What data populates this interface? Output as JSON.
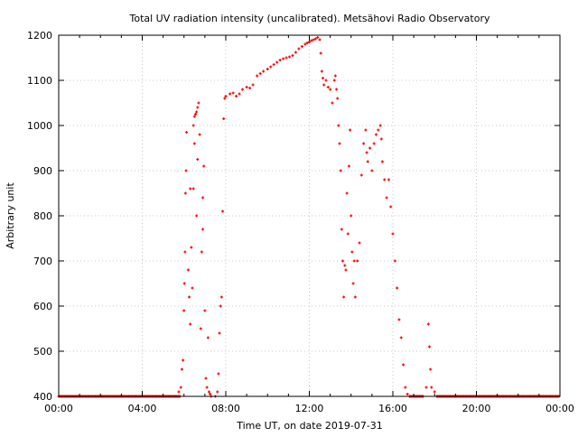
{
  "chart_data": {
    "type": "scatter",
    "title": "Total UV radiation intensity (uncalibrated). Metsähovi Radio Observatory",
    "xlabel": "Time UT, on date 2019-07-31",
    "ylabel": "Arbitrary unit",
    "xlim": [
      0,
      24
    ],
    "ylim": [
      400,
      1200
    ],
    "xticks": [
      0,
      4,
      8,
      12,
      16,
      20,
      24
    ],
    "xtick_labels": [
      "00:00",
      "04:00",
      "08:00",
      "12:00",
      "16:00",
      "20:00",
      "00:00"
    ],
    "yticks": [
      400,
      500,
      600,
      700,
      800,
      900,
      1000,
      1100,
      1200
    ],
    "ytick_labels": [
      "400",
      "500",
      "600",
      "700",
      "800",
      "900",
      "1000",
      "1100",
      "1200"
    ],
    "grid": true,
    "marker_color": "#ff0000",
    "baseline_value": 400,
    "baseline_ranges": [
      [
        0,
        5.8
      ],
      [
        16.8,
        17.5
      ],
      [
        18.1,
        24
      ]
    ],
    "points": [
      [
        5.75,
        410
      ],
      [
        5.85,
        420
      ],
      [
        5.9,
        460
      ],
      [
        5.95,
        480
      ],
      [
        6.0,
        590
      ],
      [
        6.02,
        650
      ],
      [
        6.05,
        720
      ],
      [
        6.07,
        850
      ],
      [
        6.1,
        900
      ],
      [
        6.12,
        985
      ],
      [
        6.2,
        680
      ],
      [
        6.25,
        620
      ],
      [
        6.3,
        560
      ],
      [
        6.3,
        860
      ],
      [
        6.35,
        730
      ],
      [
        6.4,
        640
      ],
      [
        6.45,
        1000
      ],
      [
        6.5,
        1020
      ],
      [
        6.55,
        1025
      ],
      [
        6.6,
        1030
      ],
      [
        6.65,
        1040
      ],
      [
        6.7,
        1050
      ],
      [
        6.5,
        960
      ],
      [
        6.45,
        860
      ],
      [
        6.6,
        800
      ],
      [
        6.65,
        925
      ],
      [
        6.75,
        980
      ],
      [
        6.8,
        550
      ],
      [
        6.85,
        720
      ],
      [
        6.9,
        840
      ],
      [
        6.9,
        770
      ],
      [
        6.95,
        910
      ],
      [
        7.0,
        590
      ],
      [
        7.05,
        440
      ],
      [
        7.1,
        420
      ],
      [
        7.15,
        530
      ],
      [
        7.2,
        410
      ],
      [
        7.25,
        405
      ],
      [
        7.3,
        400
      ],
      [
        7.5,
        400
      ],
      [
        7.6,
        410
      ],
      [
        7.65,
        450
      ],
      [
        7.7,
        540
      ],
      [
        7.75,
        600
      ],
      [
        7.8,
        620
      ],
      [
        7.85,
        810
      ],
      [
        7.9,
        1015
      ],
      [
        7.95,
        1060
      ],
      [
        8.0,
        1065
      ],
      [
        8.2,
        1070
      ],
      [
        8.35,
        1072
      ],
      [
        8.5,
        1065
      ],
      [
        8.65,
        1070
      ],
      [
        8.8,
        1080
      ],
      [
        9.0,
        1085
      ],
      [
        9.15,
        1083
      ],
      [
        9.3,
        1090
      ],
      [
        9.5,
        1110
      ],
      [
        9.65,
        1115
      ],
      [
        9.8,
        1120
      ],
      [
        10.0,
        1125
      ],
      [
        10.15,
        1130
      ],
      [
        10.3,
        1135
      ],
      [
        10.45,
        1140
      ],
      [
        10.6,
        1145
      ],
      [
        10.75,
        1148
      ],
      [
        10.9,
        1150
      ],
      [
        11.05,
        1152
      ],
      [
        11.2,
        1155
      ],
      [
        11.35,
        1162
      ],
      [
        11.5,
        1170
      ],
      [
        11.65,
        1175
      ],
      [
        11.8,
        1180
      ],
      [
        11.9,
        1183
      ],
      [
        12.0,
        1185
      ],
      [
        12.1,
        1188
      ],
      [
        12.2,
        1190
      ],
      [
        12.3,
        1192
      ],
      [
        12.4,
        1195
      ],
      [
        12.5,
        1190
      ],
      [
        12.55,
        1160
      ],
      [
        12.6,
        1120
      ],
      [
        12.65,
        1105
      ],
      [
        12.7,
        1090
      ],
      [
        12.8,
        1100
      ],
      [
        12.9,
        1085
      ],
      [
        13.0,
        1080
      ],
      [
        13.1,
        1050
      ],
      [
        13.2,
        1100
      ],
      [
        13.25,
        1110
      ],
      [
        13.3,
        1080
      ],
      [
        13.35,
        1060
      ],
      [
        13.4,
        1000
      ],
      [
        13.45,
        960
      ],
      [
        13.5,
        900
      ],
      [
        13.55,
        770
      ],
      [
        13.6,
        700
      ],
      [
        13.65,
        620
      ],
      [
        13.7,
        690
      ],
      [
        13.75,
        680
      ],
      [
        13.8,
        850
      ],
      [
        13.85,
        760
      ],
      [
        13.9,
        910
      ],
      [
        13.95,
        990
      ],
      [
        14.0,
        800
      ],
      [
        14.05,
        720
      ],
      [
        14.1,
        650
      ],
      [
        14.15,
        700
      ],
      [
        14.2,
        620
      ],
      [
        14.3,
        700
      ],
      [
        14.4,
        740
      ],
      [
        14.5,
        890
      ],
      [
        14.6,
        960
      ],
      [
        14.7,
        990
      ],
      [
        14.75,
        940
      ],
      [
        14.8,
        920
      ],
      [
        14.9,
        950
      ],
      [
        15.0,
        900
      ],
      [
        15.1,
        960
      ],
      [
        15.2,
        980
      ],
      [
        15.3,
        990
      ],
      [
        15.4,
        1000
      ],
      [
        15.45,
        970
      ],
      [
        15.5,
        920
      ],
      [
        15.6,
        880
      ],
      [
        15.7,
        840
      ],
      [
        15.8,
        880
      ],
      [
        15.9,
        820
      ],
      [
        16.0,
        760
      ],
      [
        16.1,
        700
      ],
      [
        16.2,
        640
      ],
      [
        16.3,
        570
      ],
      [
        16.4,
        530
      ],
      [
        16.5,
        470
      ],
      [
        16.6,
        420
      ],
      [
        16.7,
        405
      ],
      [
        17.6,
        420
      ],
      [
        17.7,
        560
      ],
      [
        17.75,
        510
      ],
      [
        17.8,
        460
      ],
      [
        17.85,
        420
      ],
      [
        18.0,
        410
      ]
    ]
  }
}
